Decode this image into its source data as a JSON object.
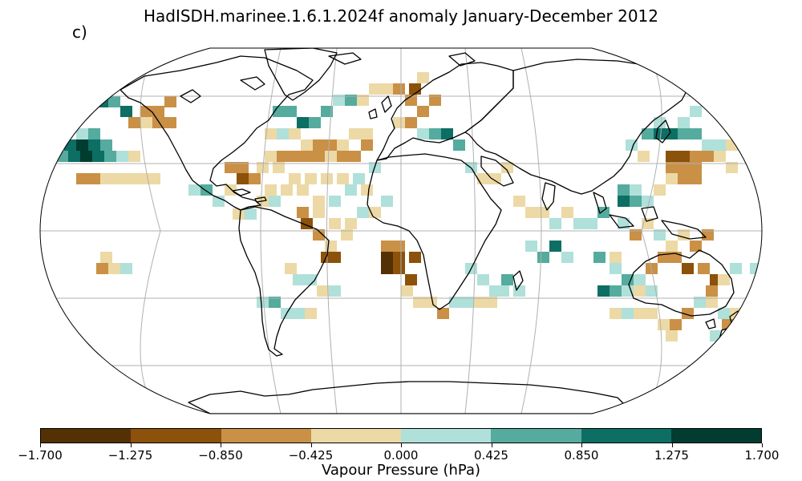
{
  "title": "HadISDH.marinee.1.6.1.2024f anomaly January-December 2012",
  "panel_label": "c)",
  "colorbar": {
    "label": "Vapour Pressure (hPa)",
    "ticks": [
      "−1.700",
      "−1.275",
      "−0.850",
      "−0.425",
      "0.000",
      "0.425",
      "0.850",
      "1.275",
      "1.700"
    ],
    "colors": [
      "#543005",
      "#8c510a",
      "#c99046",
      "#ecd9a5",
      "#b0e0da",
      "#54ab9e",
      "#0d6e64",
      "#003c30"
    ]
  },
  "map": {
    "projection": "Robinson",
    "grid": true,
    "coastline_color": "#000000",
    "gridline_color": "#b0b0b0"
  }
}
